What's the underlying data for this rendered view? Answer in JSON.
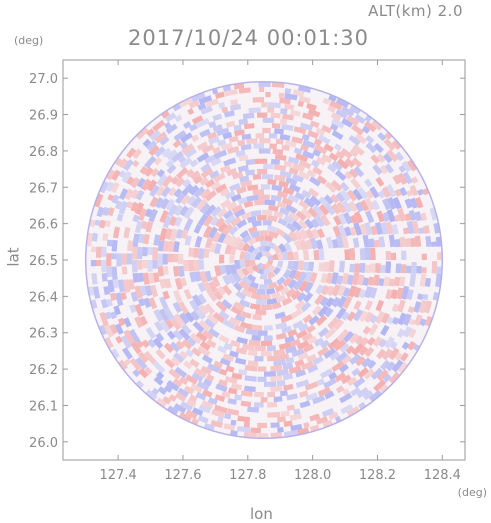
{
  "header": {
    "alt_label": "ALT(km) 2.0",
    "timestamp": "2017/10/24 00:01:30"
  },
  "colors": {
    "positive": "#f4a6a6",
    "negative": "#a9aef2",
    "axis": "#8a8a8a"
  },
  "chart_data": {
    "type": "heatmap",
    "title": "2017/10/24 00:01:30",
    "subtitle": "ALT(km) 2.0",
    "xlabel": "lon",
    "ylabel": "lat",
    "x_unit": "(deg)",
    "y_unit": "(deg)",
    "xlim": [
      127.23,
      128.47
    ],
    "ylim": [
      25.95,
      27.05
    ],
    "x_ticks": [
      "127.4",
      "127.6",
      "127.8",
      "128.0",
      "128.2",
      "128.4"
    ],
    "x_tick_values": [
      127.4,
      127.6,
      127.8,
      128.0,
      128.2,
      128.4
    ],
    "y_ticks": [
      "26.0",
      "26.1",
      "26.2",
      "26.3",
      "26.4",
      "26.5",
      "26.6",
      "26.7",
      "26.8",
      "26.9",
      "27.0"
    ],
    "y_tick_values": [
      26.0,
      26.1,
      26.2,
      26.3,
      26.4,
      26.5,
      26.6,
      26.7,
      26.8,
      26.9,
      27.0
    ],
    "radar_center": [
      127.85,
      26.5
    ],
    "radar_range_deg": 0.55,
    "colormap": "diverging red/blue (red positive, blue negative)",
    "grid": false,
    "legend": "none"
  }
}
